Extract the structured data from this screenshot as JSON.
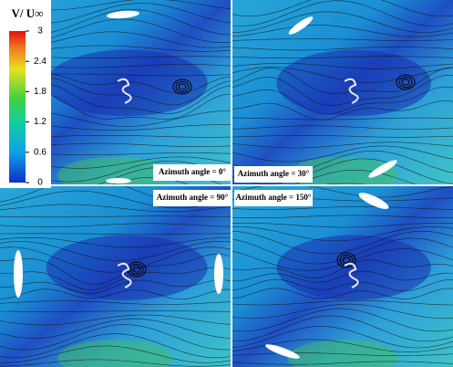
{
  "colorbar": {
    "title": "V/ U∞",
    "lim": [
      0,
      3
    ],
    "ticks": [
      0,
      0.6,
      1.2,
      1.8,
      2.4,
      3
    ]
  },
  "panels": [
    {
      "label": "Azimuth angle = 0°"
    },
    {
      "label": "Azimuth angle = 30°"
    },
    {
      "label": "Azimuth angle = 90°"
    },
    {
      "label": "Azimuth angle = 150°"
    }
  ]
}
